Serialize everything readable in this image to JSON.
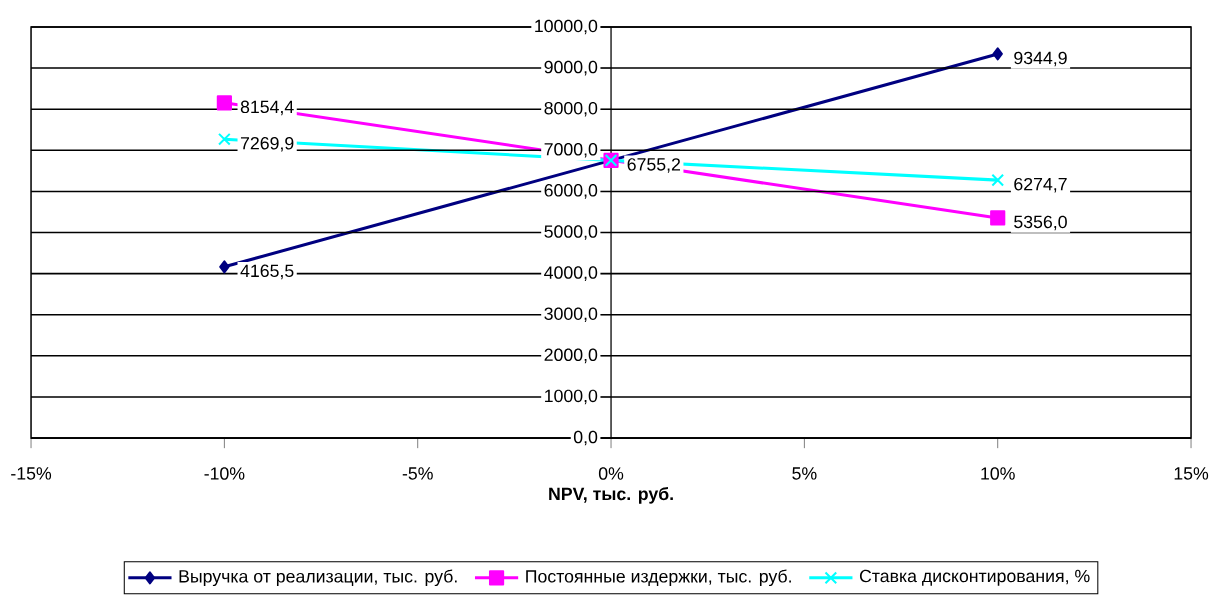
{
  "chart_data": {
    "type": "line",
    "xlabel": "NPV, тыс. руб.",
    "x": [
      -10,
      0,
      10
    ],
    "xlim": [
      -15,
      15
    ],
    "xticks": [
      {
        "value": -15,
        "label": "-15%"
      },
      {
        "value": -10,
        "label": "-10%"
      },
      {
        "value": -5,
        "label": "-5%"
      },
      {
        "value": 0,
        "label": "0%"
      },
      {
        "value": 5,
        "label": "5%"
      },
      {
        "value": 10,
        "label": "10%"
      },
      {
        "value": 15,
        "label": "15%"
      }
    ],
    "ylim": [
      0,
      10000
    ],
    "yticks": [
      {
        "value": 0,
        "label": "0,0"
      },
      {
        "value": 1000,
        "label": "1000,0"
      },
      {
        "value": 2000,
        "label": "2000,0"
      },
      {
        "value": 3000,
        "label": "3000,0"
      },
      {
        "value": 4000,
        "label": "4000,0"
      },
      {
        "value": 5000,
        "label": "5000,0"
      },
      {
        "value": 6000,
        "label": "6000,0"
      },
      {
        "value": 7000,
        "label": "7000,0"
      },
      {
        "value": 8000,
        "label": "8000,0"
      },
      {
        "value": 9000,
        "label": "9000,0"
      },
      {
        "value": 10000,
        "label": "10000,0"
      }
    ],
    "grid": "y",
    "legend": "bottom",
    "series": [
      {
        "name": "Выручка от реализации, тыс. руб.",
        "color": "#000080",
        "marker": "diamond",
        "values": [
          4165.5,
          6755.2,
          9344.9
        ],
        "value_labels": [
          "4165,5",
          "6755,2",
          "9344,9"
        ]
      },
      {
        "name": "Постоянные издержки, тыс. руб.",
        "color": "#ff00ff",
        "marker": "square",
        "values": [
          8154.4,
          6755.2,
          5356.0
        ],
        "value_labels": [
          "8154,4",
          null,
          "5356,0"
        ]
      },
      {
        "name": "Ставка дисконтирования, %",
        "color": "#00ffff",
        "marker": "cross",
        "values": [
          7269.9,
          6755.2,
          6274.7
        ],
        "value_labels": [
          "7269,9",
          null,
          "6274,7"
        ]
      }
    ]
  }
}
